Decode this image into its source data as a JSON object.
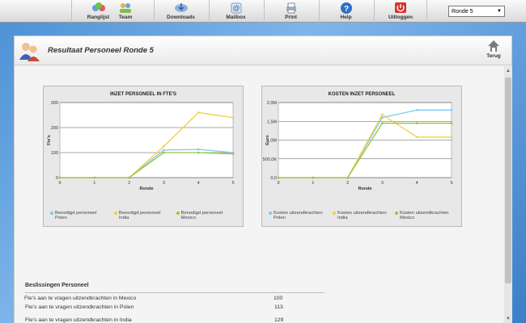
{
  "nav": {
    "items": [
      {
        "label": "Ranglijst",
        "icon": "podium-icon"
      },
      {
        "label": "Team",
        "icon": "team-icon"
      },
      {
        "label": "Downloads",
        "icon": "downloads-icon"
      },
      {
        "label": "Mailbox",
        "icon": "mailbox-icon"
      },
      {
        "label": "Print",
        "icon": "printer-icon"
      },
      {
        "label": "Help",
        "icon": "help-icon"
      },
      {
        "label": "Uitloggen",
        "icon": "power-icon"
      }
    ],
    "round_select": "Ronde 5"
  },
  "panel": {
    "title": "Resultaat Personeel Ronde 5",
    "back_label": "Terug"
  },
  "colors": {
    "polen": "#7ec8f0",
    "india": "#f4cc45",
    "mexico": "#97c53a"
  },
  "chart_data": [
    {
      "type": "line",
      "title": "INZET PERSONEEL IN FTE'S",
      "xlabel": "Ronde",
      "ylabel": "Fte's",
      "x": [
        0,
        1,
        2,
        3,
        4,
        5
      ],
      "ylim": [
        0,
        300
      ],
      "yticks": [
        "0",
        "100",
        "200",
        "300"
      ],
      "series": [
        {
          "name": "Benodigd personeel Polen",
          "values": [
            0,
            0,
            0,
            110,
            113,
            100
          ]
        },
        {
          "name": "Benodigd personeel India",
          "values": [
            0,
            0,
            0,
            125,
            260,
            240
          ]
        },
        {
          "name": "Benodigd personeel Mexico",
          "values": [
            0,
            0,
            0,
            100,
            100,
            95
          ]
        }
      ]
    },
    {
      "type": "line",
      "title": "KOSTEN INZET PERSONEEL",
      "xlabel": "Ronde",
      "ylabel": "Euro",
      "x": [
        0,
        1,
        2,
        3,
        4,
        5
      ],
      "ylim": [
        0,
        2000000
      ],
      "yticks": [
        "0,0",
        "500,0K",
        "1,0M",
        "1,5M",
        "2,0M"
      ],
      "series": [
        {
          "name": "Kosten uitzendkrachten Polen",
          "values": [
            0,
            0,
            0,
            1600000,
            1800000,
            1800000
          ]
        },
        {
          "name": "Kosten uitzendkrachten India",
          "values": [
            0,
            0,
            0,
            1680000,
            1080000,
            1080000
          ]
        },
        {
          "name": "Kosten uitzendkrachten Mexico",
          "values": [
            0,
            0,
            0,
            1450000,
            1450000,
            1450000
          ]
        }
      ]
    }
  ],
  "decisions": {
    "title": "Beslissingen Personeel",
    "rows": [
      {
        "label": "Fte's aan te vragen uitzendkrachten in Polen",
        "value": "113"
      },
      {
        "label": "Fte's aan te vragen uitzendkrachten in India",
        "value": "129"
      },
      {
        "label": "Fte's aan te vragen uitzendkrachten in Mexico",
        "value": "100"
      }
    ]
  }
}
